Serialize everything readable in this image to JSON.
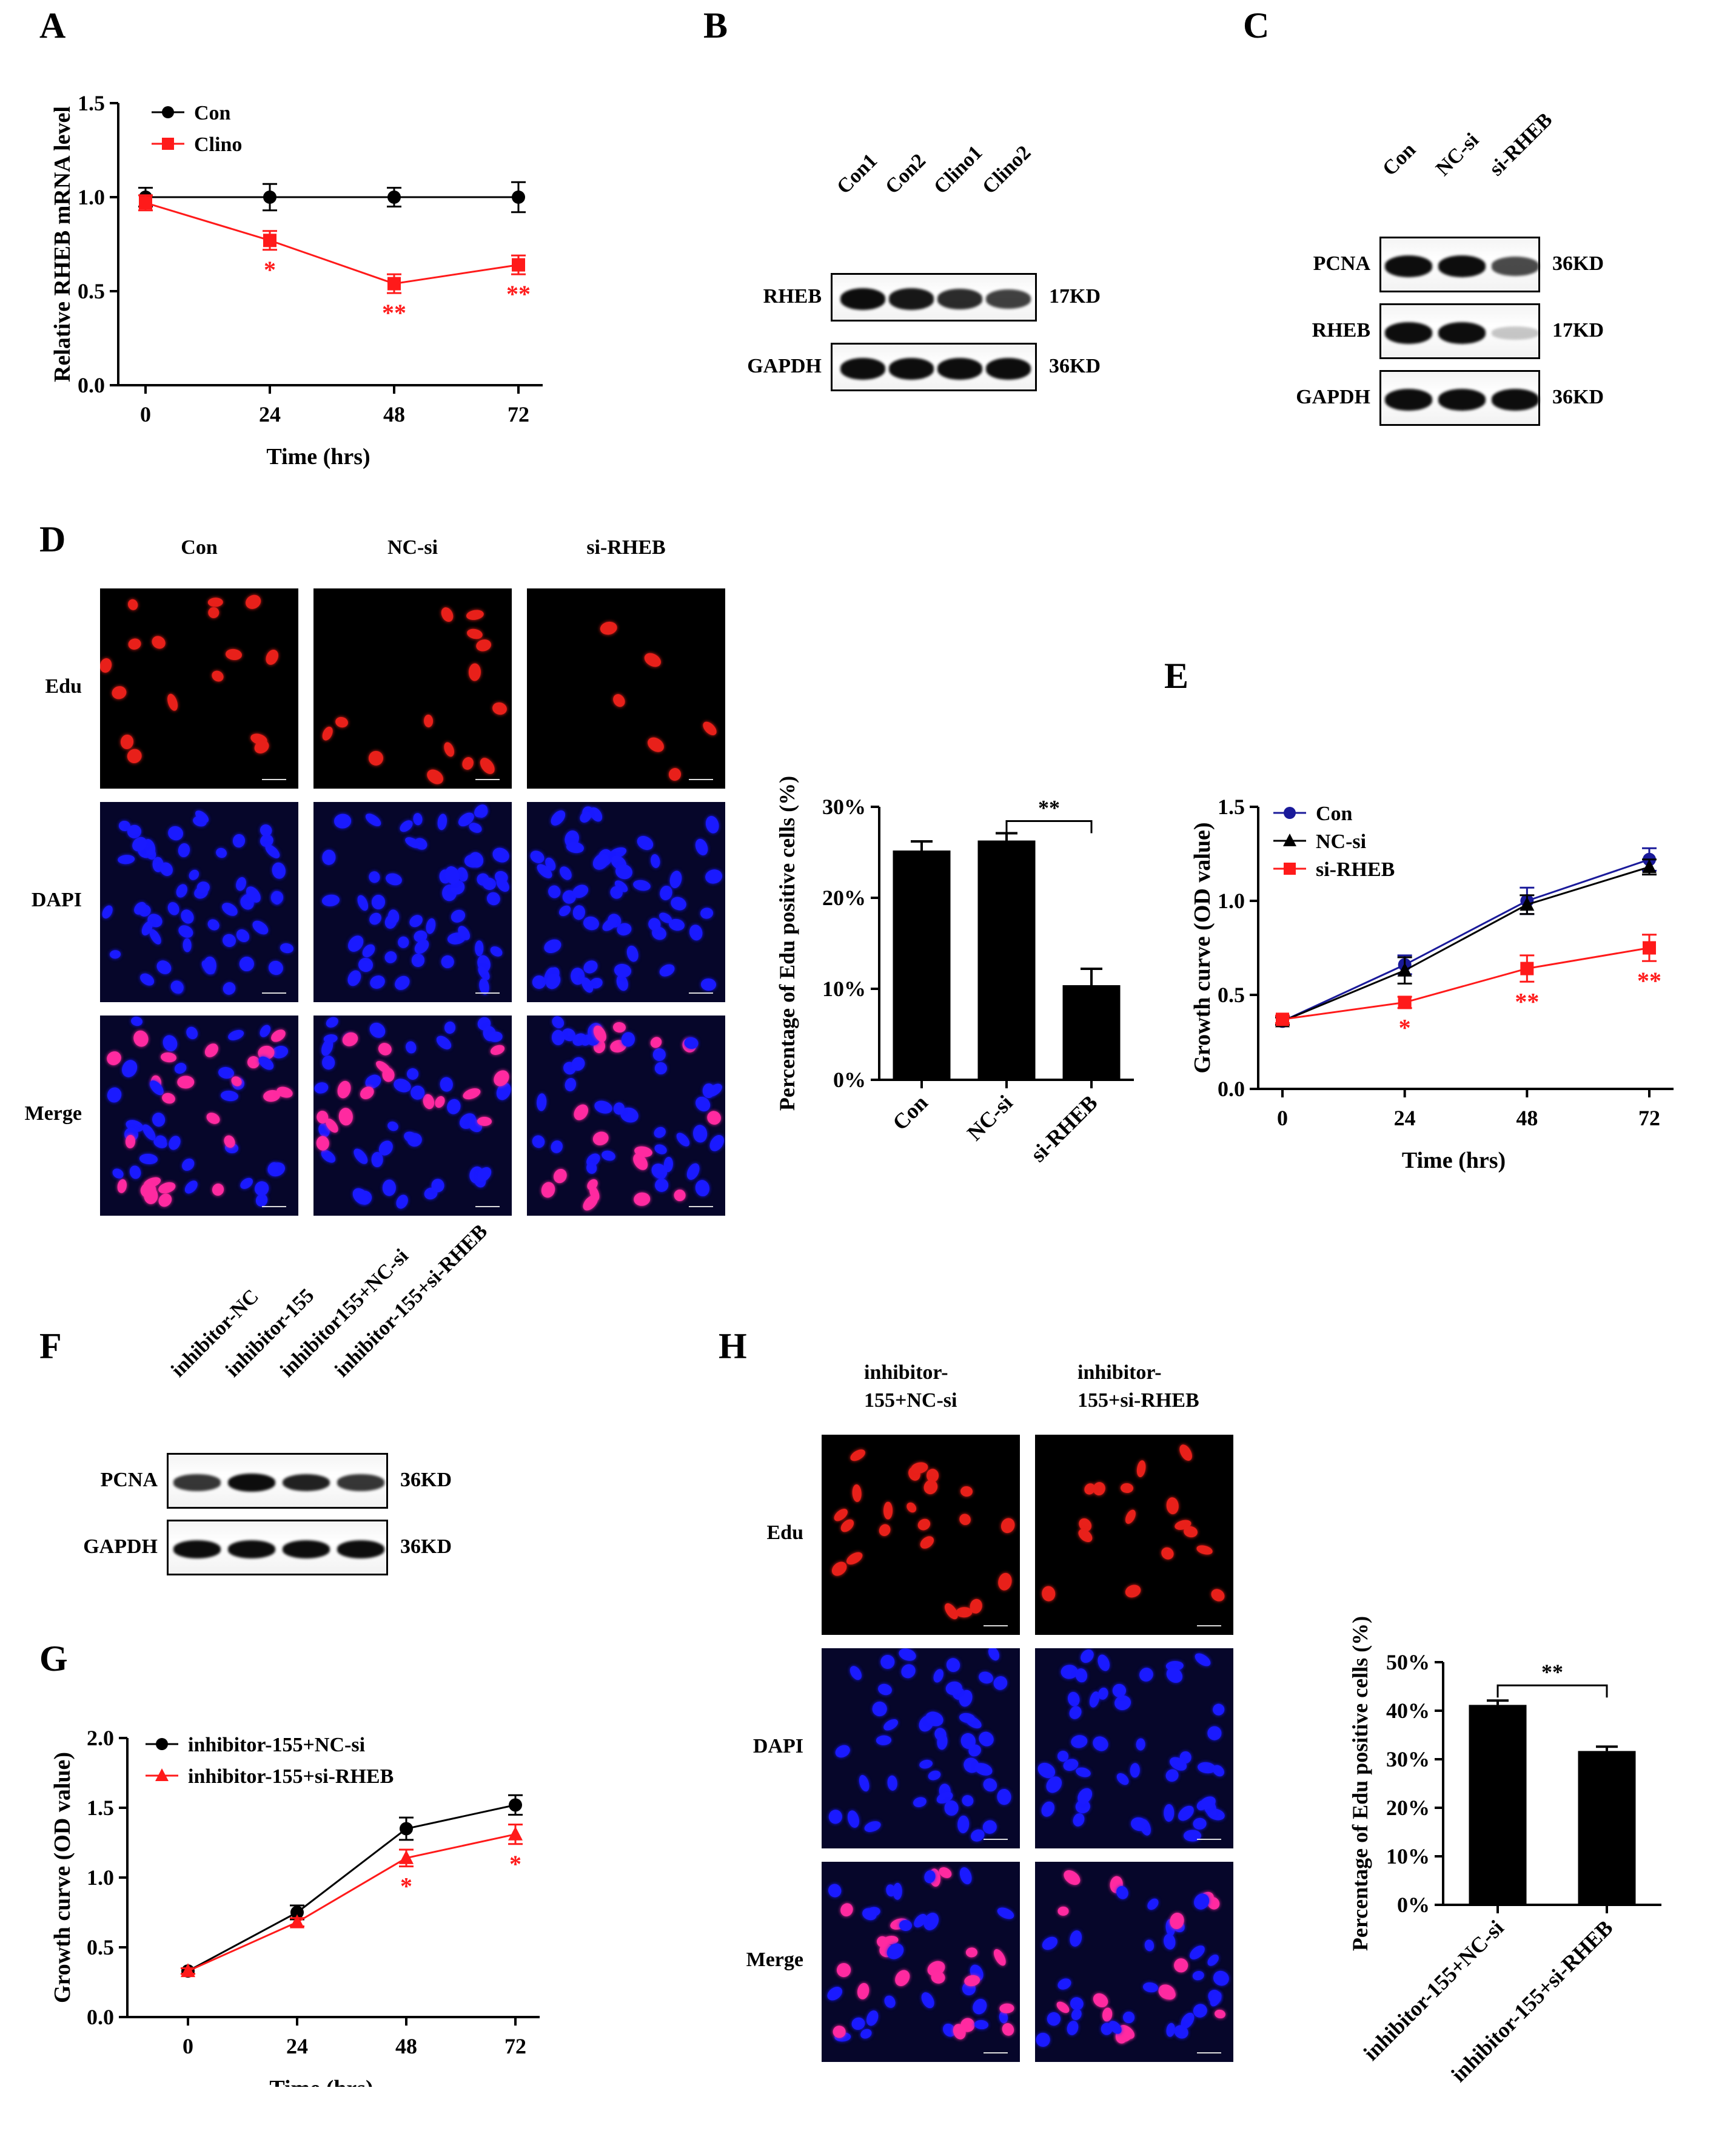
{
  "panels": {
    "A": "A",
    "B": "B",
    "C": "C",
    "D": "D",
    "E": "E",
    "F": "F",
    "G": "G",
    "H": "H"
  },
  "colors": {
    "black": "#000000",
    "red": "#ff1a1a",
    "blue": "#1a1a9a",
    "edu": "#e8201a",
    "dapi": "#1a1aff",
    "merge": "#ff2aa0"
  },
  "panelA": {
    "chart_data": {
      "type": "line",
      "ylabel": "Relative RHEB mRNA level",
      "xlabel": "Time (hrs)",
      "x": [
        0,
        24,
        48,
        72
      ],
      "xticks": [
        "0",
        "24",
        "48",
        "72"
      ],
      "yticks": [
        "0.0",
        "0.5",
        "1.0",
        "1.5"
      ],
      "ylim": [
        0,
        1.5
      ],
      "series": [
        {
          "name": "Con",
          "values": [
            1.0,
            1.0,
            1.0,
            1.0
          ],
          "err": [
            0.05,
            0.07,
            0.05,
            0.08
          ],
          "color": "#000000"
        },
        {
          "name": "Clino",
          "values": [
            0.97,
            0.77,
            0.54,
            0.64
          ],
          "err": [
            0.04,
            0.05,
            0.05,
            0.05
          ],
          "color": "#ff1a1a",
          "sig": [
            "",
            "*",
            "**",
            "**"
          ]
        }
      ]
    }
  },
  "panelB": {
    "lanes": [
      "Con1",
      "Con2",
      "Clino1",
      "Clino2"
    ],
    "rows": [
      {
        "name": "RHEB",
        "size": "17KD"
      },
      {
        "name": "GAPDH",
        "size": "36KD"
      }
    ]
  },
  "panelC": {
    "lanes": [
      "Con",
      "NC-si",
      "si-RHEB"
    ],
    "rows": [
      {
        "name": "PCNA",
        "size": "36KD"
      },
      {
        "name": "RHEB",
        "size": "17KD"
      },
      {
        "name": "GAPDH",
        "size": "36KD"
      }
    ]
  },
  "panelD": {
    "cols": [
      "Con",
      "NC-si",
      "si-RHEB"
    ],
    "rows": [
      "Edu",
      "DAPI",
      "Merge"
    ],
    "chart_data": {
      "type": "bar",
      "ylabel": "Percentage of Edu positive cells (%)",
      "categories": [
        "Con",
        "NC-si",
        "si-RHEB"
      ],
      "values": [
        25.2,
        26.3,
        10.4
      ],
      "err": [
        1.0,
        0.8,
        1.8
      ],
      "yticks": [
        "0%",
        "10%",
        "20%",
        "30%"
      ],
      "ylim": [
        0,
        30
      ],
      "sig": "**"
    }
  },
  "panelE": {
    "chart_data": {
      "type": "line",
      "ylabel": "Growth curve (OD value)",
      "xlabel": "Time (hrs)",
      "x": [
        0,
        24,
        48,
        72
      ],
      "xticks": [
        "0",
        "24",
        "48",
        "72"
      ],
      "yticks": [
        "0.0",
        "0.5",
        "1.0",
        "1.5"
      ],
      "ylim": [
        0,
        1.5
      ],
      "series": [
        {
          "name": "Con",
          "values": [
            0.36,
            0.66,
            1.0,
            1.22
          ],
          "err": [
            0.02,
            0.05,
            0.07,
            0.06
          ],
          "color": "#1a1a9a"
        },
        {
          "name": "NC-si",
          "values": [
            0.36,
            0.63,
            0.98,
            1.18
          ],
          "err": [
            0.02,
            0.07,
            0.05,
            0.04
          ],
          "color": "#000000"
        },
        {
          "name": "si-RHEB",
          "values": [
            0.37,
            0.46,
            0.64,
            0.75
          ],
          "err": [
            0.02,
            0.03,
            0.07,
            0.07
          ],
          "color": "#ff1a1a",
          "sig": [
            "",
            "*",
            "**",
            "**"
          ]
        }
      ]
    }
  },
  "panelF": {
    "lanes": [
      "inhibitor-NC",
      "inhibitor-155",
      "inhibitor155+NC-si",
      "inhibitor-155+si-RHEB"
    ],
    "rows": [
      {
        "name": "PCNA",
        "size": "36KD"
      },
      {
        "name": "GAPDH",
        "size": "36KD"
      }
    ]
  },
  "panelG": {
    "chart_data": {
      "type": "line",
      "ylabel": "Growth curve (OD value)",
      "xlabel": "Time (hrs)",
      "x": [
        0,
        24,
        48,
        72
      ],
      "xticks": [
        "0",
        "24",
        "48",
        "72"
      ],
      "yticks": [
        "0.0",
        "0.5",
        "1.0",
        "1.5",
        "2.0"
      ],
      "ylim": [
        0,
        2.0
      ],
      "series": [
        {
          "name": "inhibitor-155+NC-si",
          "values": [
            0.33,
            0.75,
            1.35,
            1.52
          ],
          "err": [
            0.02,
            0.05,
            0.08,
            0.07
          ],
          "color": "#000000"
        },
        {
          "name": "inhibitor-155+si-RHEB",
          "values": [
            0.33,
            0.68,
            1.14,
            1.31
          ],
          "err": [
            0.02,
            0.03,
            0.06,
            0.07
          ],
          "color": "#ff1a1a",
          "sig": [
            "",
            "",
            "*",
            "*"
          ]
        }
      ]
    }
  },
  "panelH": {
    "cols": [
      "inhibitor-\n155+NC-si",
      "inhibitor-\n155+si-RHEB"
    ],
    "rows": [
      "Edu",
      "DAPI",
      "Merge"
    ],
    "chart_data": {
      "type": "bar",
      "ylabel": "Percentage of Edu positive cells (%)",
      "categories": [
        "inhibitor-155+NC-si",
        "inhibitor-155+si-RHEB"
      ],
      "values": [
        41.2,
        31.7
      ],
      "err": [
        0.9,
        0.9
      ],
      "yticks": [
        "0%",
        "10%",
        "20%",
        "30%",
        "40%",
        "50%"
      ],
      "ylim": [
        0,
        50
      ],
      "sig": "**"
    }
  }
}
